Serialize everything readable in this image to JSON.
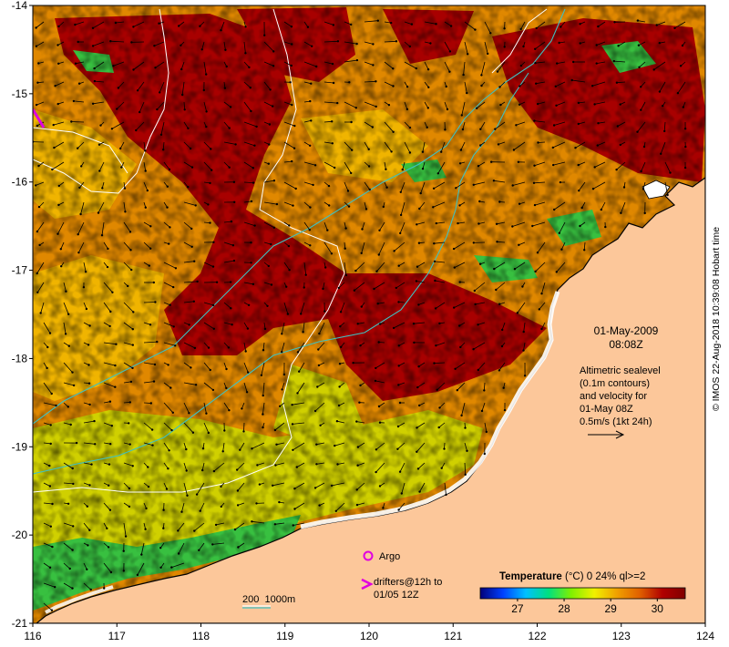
{
  "map": {
    "x_axis": {
      "min": 116,
      "max": 124,
      "ticks": [
        "116",
        "117",
        "118",
        "119",
        "120",
        "121",
        "122",
        "123",
        "124"
      ]
    },
    "y_axis": {
      "min": -21,
      "max": -14,
      "ticks": [
        "-14",
        "-15",
        "-16",
        "-17",
        "-18",
        "-19",
        "-20",
        "-21"
      ]
    },
    "colors": {
      "land": "#fcc79a",
      "hot": "#a80000",
      "warm": "#e08800",
      "mild": "#f0b400",
      "cool": "#d0d000",
      "cold": "#38c040",
      "coldest": "#00a0e0",
      "cloud": "#ffffff",
      "coastline": "#000000",
      "contour_200m": "#ffffff",
      "contour_1000m": "#40c0c0",
      "argo": "#e000e0"
    }
  },
  "annotations": {
    "date": "01-May-2009",
    "time": "08:08Z",
    "altimetry": [
      "Altimetric sealevel",
      "(0.1m contours)",
      "and velocity for",
      "01-May 08Z",
      "0.5m/s (1kt 24h)"
    ],
    "argo_label": "Argo",
    "drifters_label_1": "drifters@12h to",
    "drifters_label_2": "01/05 12Z",
    "bathy_200": "200",
    "bathy_1000": "1000m",
    "credit": "© IMOS 22-Aug-2018 10:39:08 Hobart time"
  },
  "legend": {
    "title_bold": "Temperature",
    "title_rest": " (°C) 0 24% ql>=2",
    "tick_labels": [
      "27",
      "28",
      "29",
      "30"
    ],
    "tick_values": [
      27,
      28,
      29,
      30
    ],
    "min": 26.2,
    "max": 30.6,
    "gradient": [
      "#00007a",
      "#0040ff",
      "#00c0ff",
      "#00e080",
      "#80f000",
      "#f0f000",
      "#f0a000",
      "#e06000",
      "#b00000",
      "#800000"
    ]
  }
}
